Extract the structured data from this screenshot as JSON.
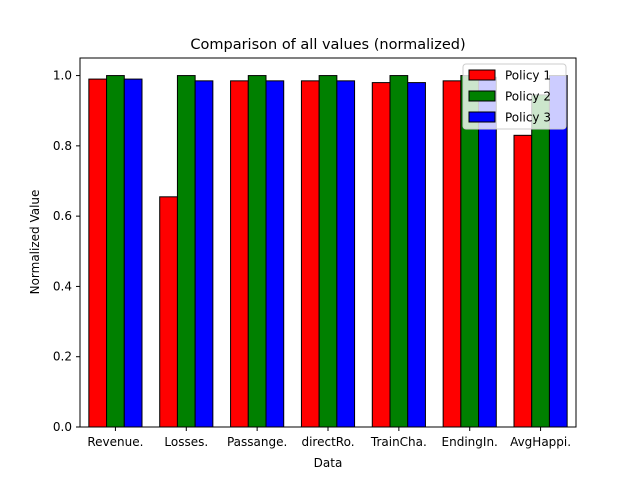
{
  "chart_data": {
    "type": "bar",
    "title": "Comparison of all values (normalized)",
    "xlabel": "Data",
    "ylabel": "Normalized Value",
    "ylim": [
      0,
      1.05
    ],
    "yticks": [
      "0.0",
      "0.2",
      "0.4",
      "0.6",
      "0.8",
      "1.0"
    ],
    "categories": [
      "Revenue.",
      "Losses.",
      "Passange.",
      "directRo.",
      "TrainCha.",
      "EndingIn.",
      "AvgHappi."
    ],
    "series": [
      {
        "name": "Policy 1",
        "color": "#ff0000",
        "values": [
          0.99,
          0.655,
          0.985,
          0.985,
          0.98,
          0.985,
          0.83
        ]
      },
      {
        "name": "Policy 2",
        "color": "#008000",
        "values": [
          1.0,
          1.0,
          1.0,
          1.0,
          1.0,
          1.0,
          0.945
        ]
      },
      {
        "name": "Policy 3",
        "color": "#0000ff",
        "values": [
          0.99,
          0.985,
          0.985,
          0.985,
          0.98,
          0.995,
          1.0
        ]
      }
    ],
    "legend_position": "top-right",
    "grid": false
  }
}
